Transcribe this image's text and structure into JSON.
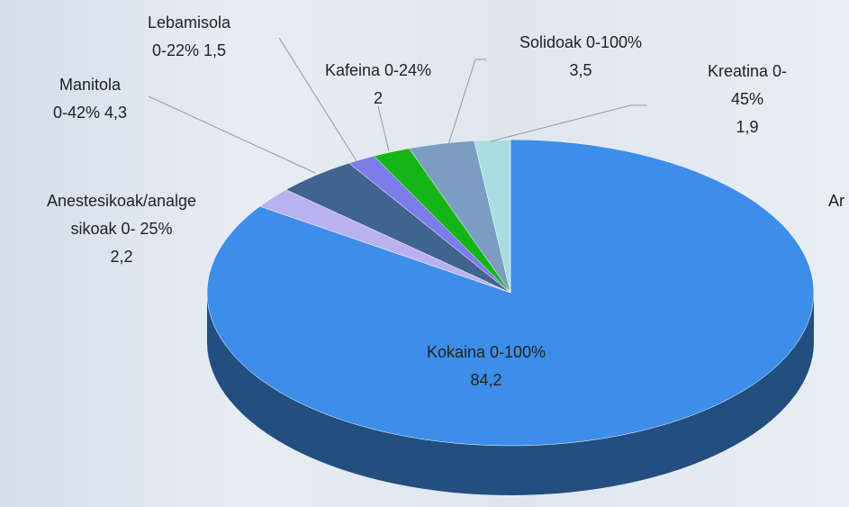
{
  "chart_data": {
    "type": "pie",
    "categories": [
      "Kokaina 0-100%",
      "Anestesikoak/analge\nsikoak 0- 25%",
      "Manitola\n0-42%",
      "Lebamisola\n0-22%",
      "Kafeina 0-24%",
      "Solidoak 0-100%",
      "Kreatina 0-45%"
    ],
    "values": [
      84.2,
      2.2,
      4.3,
      1.5,
      2,
      3.5,
      1.9
    ],
    "value_labels": [
      "84,2",
      "2,2",
      "4,3",
      "1,5",
      "2",
      "3,5",
      "1,9"
    ],
    "colors": [
      "#3d8ee8",
      "#bab2f0",
      "#40638f",
      "#7c7cea",
      "#16b516",
      "#7b9dc2",
      "#a9dde2"
    ],
    "annotation": "Ar"
  }
}
